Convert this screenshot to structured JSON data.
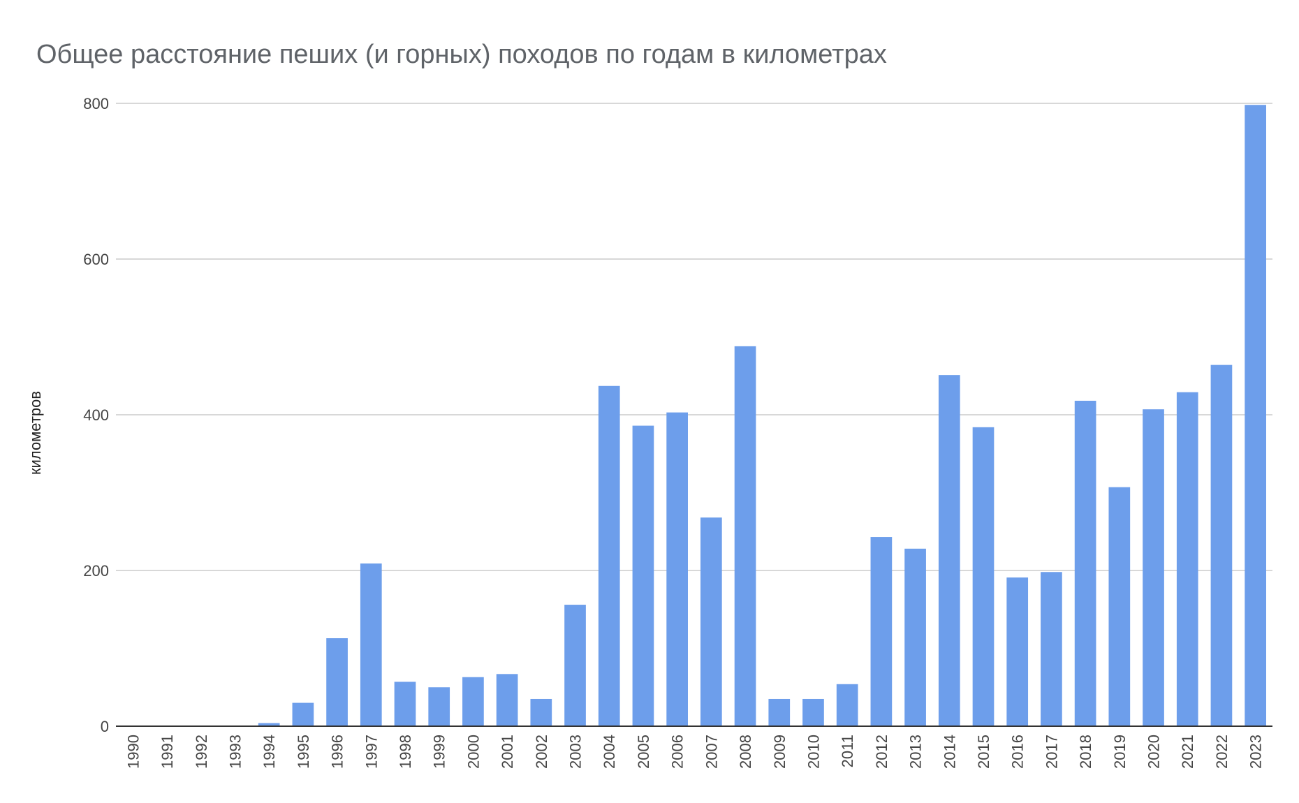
{
  "chart_data": {
    "type": "bar",
    "title": "Общее расстояние пеших (и горных) походов по годам в километрах",
    "ylabel": "километров",
    "xlabel": "",
    "ylim": [
      0,
      800
    ],
    "yticks": [
      0,
      200,
      400,
      600,
      800
    ],
    "grid": true,
    "bar_color": "#6d9eeb",
    "categories": [
      "1990",
      "1991",
      "1992",
      "1993",
      "1994",
      "1995",
      "1996",
      "1997",
      "1998",
      "1999",
      "2000",
      "2001",
      "2002",
      "2003",
      "2004",
      "2005",
      "2006",
      "2007",
      "2008",
      "2009",
      "2010",
      "2011",
      "2012",
      "2013",
      "2014",
      "2015",
      "2016",
      "2017",
      "2018",
      "2019",
      "2020",
      "2021",
      "2022",
      "2023"
    ],
    "values": [
      0,
      0,
      0,
      0,
      4,
      30,
      113,
      209,
      57,
      50,
      63,
      67,
      35,
      156,
      437,
      386,
      403,
      268,
      488,
      35,
      35,
      54,
      243,
      228,
      451,
      384,
      191,
      198,
      418,
      307,
      407,
      429,
      464,
      798
    ]
  }
}
